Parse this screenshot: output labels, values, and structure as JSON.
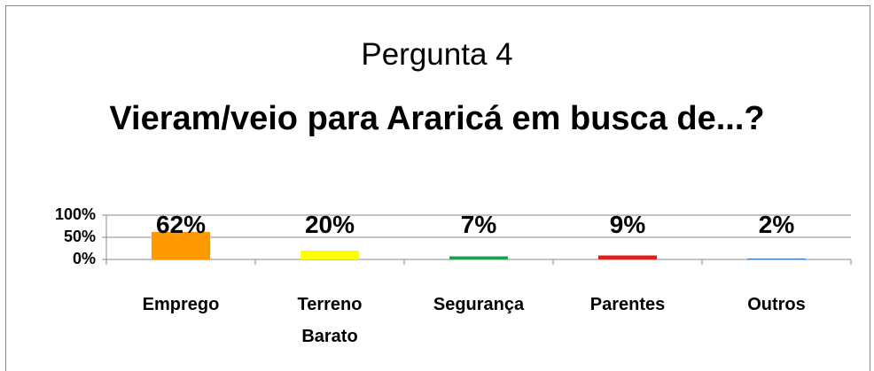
{
  "chart_data": {
    "type": "bar",
    "title": "Pergunta 4",
    "subtitle": "Vieram/veio para Araricá em busca de...?",
    "categories": [
      "Emprego",
      "Terreno Barato",
      "Segurança",
      "Parentes",
      "Outros"
    ],
    "values": [
      62,
      20,
      7,
      9,
      2
    ],
    "value_labels": [
      "62%",
      "20%",
      "7%",
      "9%",
      "2%"
    ],
    "colors": [
      "#ff9900",
      "#ffff00",
      "#1fa050",
      "#e02020",
      "#2e75b6"
    ],
    "ylim": [
      0,
      100
    ],
    "yticks": [
      {
        "value": 0,
        "label": "0%"
      },
      {
        "value": 50,
        "label": "50%"
      },
      {
        "value": 100,
        "label": "100%"
      }
    ],
    "grid": true
  }
}
